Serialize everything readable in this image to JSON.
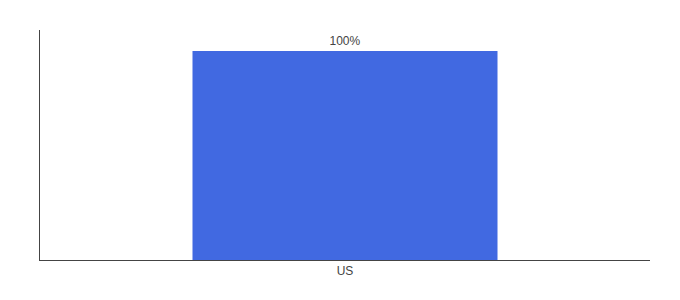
{
  "chart_data": {
    "type": "bar",
    "categories": [
      "US"
    ],
    "values": [
      100
    ],
    "value_labels": [
      "100%"
    ],
    "color": "#4169E1",
    "ylim": [
      0,
      110
    ],
    "grid": false,
    "data_labels": true,
    "tick_labels": "x"
  }
}
